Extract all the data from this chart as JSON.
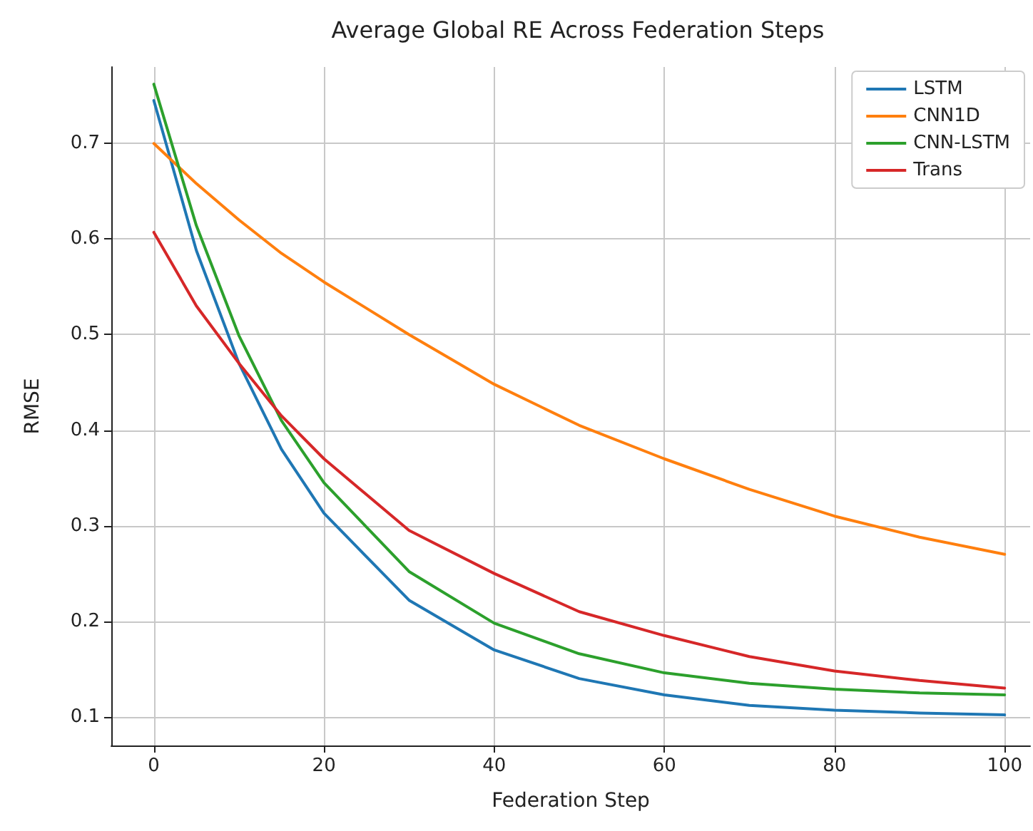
{
  "chart_data": {
    "type": "line",
    "title": "Average Global RE Across Federation Steps",
    "xlabel": "Federation Step",
    "ylabel": "RMSE",
    "x": [
      0,
      5,
      10,
      15,
      20,
      30,
      40,
      50,
      60,
      70,
      80,
      90,
      100
    ],
    "series": [
      {
        "name": "LSTM",
        "color": "#1f77b4",
        "values": [
          0.745,
          0.588,
          0.47,
          0.38,
          0.313,
          0.222,
          0.17,
          0.14,
          0.123,
          0.112,
          0.107,
          0.104,
          0.102
        ]
      },
      {
        "name": "CNN1D",
        "color": "#ff7f0e",
        "values": [
          0.7,
          0.658,
          0.62,
          0.585,
          0.555,
          0.5,
          0.448,
          0.405,
          0.37,
          0.338,
          0.31,
          0.288,
          0.27
        ]
      },
      {
        "name": "CNN-LSTM",
        "color": "#2ca02c",
        "values": [
          0.762,
          0.614,
          0.499,
          0.41,
          0.345,
          0.252,
          0.198,
          0.166,
          0.146,
          0.135,
          0.129,
          0.125,
          0.123
        ]
      },
      {
        "name": "Trans",
        "color": "#d62728",
        "values": [
          0.607,
          0.53,
          0.47,
          0.415,
          0.37,
          0.295,
          0.25,
          0.21,
          0.185,
          0.163,
          0.148,
          0.138,
          0.13
        ]
      }
    ],
    "xlim": [
      -5,
      103
    ],
    "xticks": [
      0,
      20,
      40,
      60,
      80,
      100
    ],
    "ylim": [
      0.07,
      0.78
    ],
    "yticks": [
      0.1,
      0.2,
      0.3,
      0.4,
      0.5,
      0.6,
      0.7
    ],
    "grid": true,
    "legend": "top right",
    "line_style": "solid",
    "marker": "none"
  }
}
